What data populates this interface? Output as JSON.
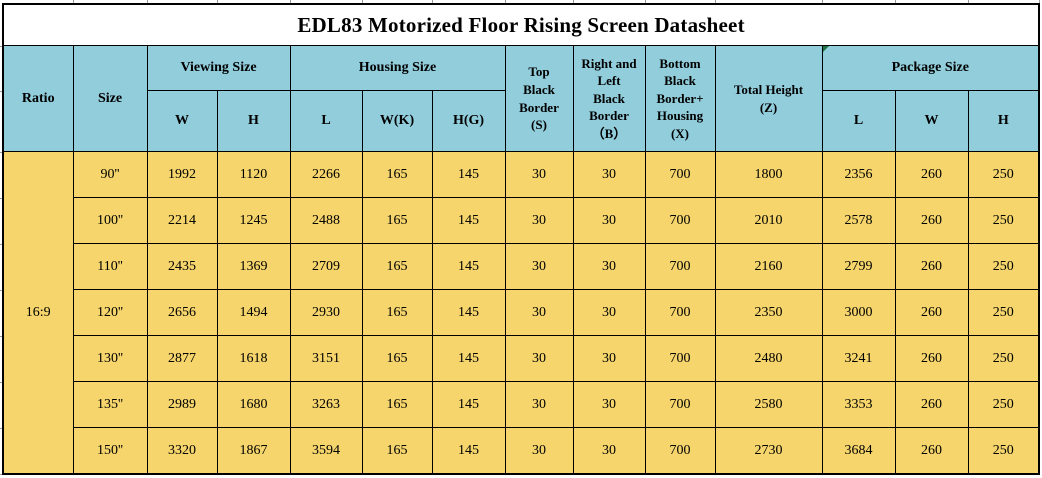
{
  "title": "EDL83 Motorized Floor Rising Screen Datasheet",
  "header": {
    "ratio": "Ratio",
    "size": "Size",
    "viewing_size": "Viewing Size",
    "housing_size": "Housing Size",
    "top_black_border": "Top\nBlack\nBorder\n(S)",
    "right_left_black_border": "Right and\nLeft\nBlack\nBorder\n（B）",
    "bottom_black_border_housing": "Bottom\nBlack\nBorder+\nHousing\n(X)",
    "total_height": "Total Height\n(Z)",
    "package_size": "Package Size",
    "sub_columns": [
      "W",
      "H",
      "L",
      "W(K)",
      "H(G)",
      "L",
      "W",
      "H"
    ]
  },
  "body": {
    "ratio_value": "16:9",
    "rows": [
      {
        "size": "90''",
        "values": [
          "1992",
          "1120",
          "2266",
          "165",
          "145",
          "30",
          "30",
          "700",
          "1800",
          "2356",
          "260",
          "250"
        ]
      },
      {
        "size": "100''",
        "values": [
          "2214",
          "1245",
          "2488",
          "165",
          "145",
          "30",
          "30",
          "700",
          "2010",
          "2578",
          "260",
          "250"
        ]
      },
      {
        "size": "110''",
        "values": [
          "2435",
          "1369",
          "2709",
          "165",
          "145",
          "30",
          "30",
          "700",
          "2160",
          "2799",
          "260",
          "250"
        ]
      },
      {
        "size": "120''",
        "values": [
          "2656",
          "1494",
          "2930",
          "165",
          "145",
          "30",
          "30",
          "700",
          "2350",
          "3000",
          "260",
          "250"
        ]
      },
      {
        "size": "130''",
        "values": [
          "2877",
          "1618",
          "3151",
          "165",
          "145",
          "30",
          "30",
          "700",
          "2480",
          "3241",
          "260",
          "250"
        ]
      },
      {
        "size": "135''",
        "values": [
          "2989",
          "1680",
          "3263",
          "165",
          "145",
          "30",
          "30",
          "700",
          "2580",
          "3353",
          "260",
          "250"
        ]
      },
      {
        "size": "150''",
        "values": [
          "3320",
          "1867",
          "3594",
          "165",
          "145",
          "30",
          "30",
          "700",
          "2730",
          "3684",
          "260",
          "250"
        ]
      }
    ]
  },
  "colors": {
    "header_bg": "#92CDDC",
    "row_bg": "#F5D56C",
    "title_bg": "#FFFFFF",
    "border": "#000000",
    "error_marker": "#217346"
  }
}
